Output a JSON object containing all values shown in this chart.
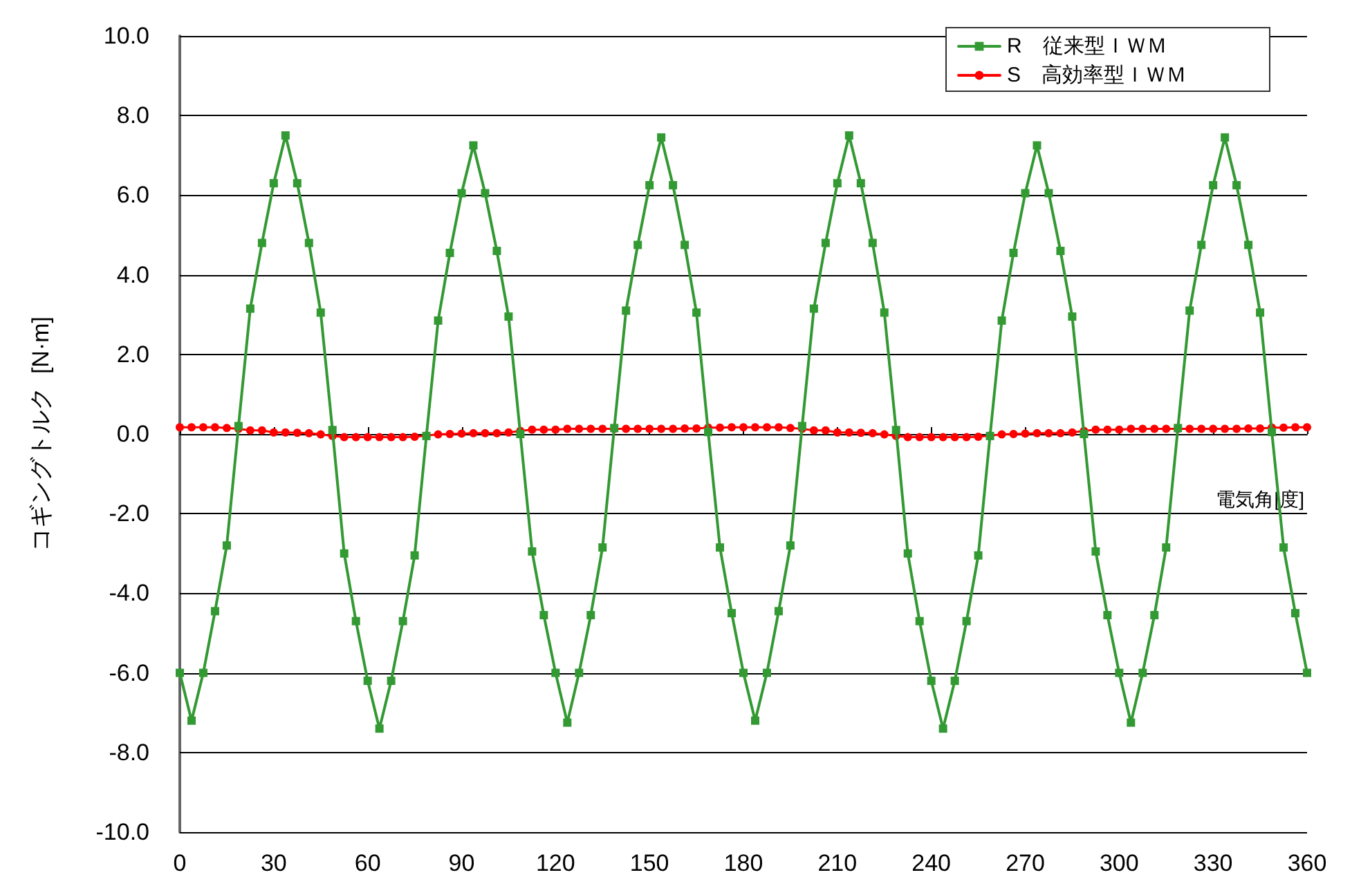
{
  "chart_data": {
    "type": "line",
    "xlabel": "電気角[度]",
    "ylabel": "コギングトルク  [N·m]",
    "x": [
      0,
      3.75,
      7.5,
      11.25,
      15,
      18.75,
      22.5,
      26.25,
      30,
      33.75,
      37.5,
      41.25,
      45,
      48.75,
      52.5,
      56.25,
      60,
      63.75,
      67.5,
      71.25,
      75,
      78.75,
      82.5,
      86.25,
      90,
      93.75,
      97.5,
      101.25,
      105,
      108.75,
      112.5,
      116.25,
      120,
      123.75,
      127.5,
      131.25,
      135,
      138.75,
      142.5,
      146.25,
      150,
      153.75,
      157.5,
      161.25,
      165,
      168.75,
      172.5,
      176.25,
      180,
      183.75,
      187.5,
      191.25,
      195,
      198.75,
      202.5,
      206.25,
      210,
      213.75,
      217.5,
      221.25,
      225,
      228.75,
      232.5,
      236.25,
      240,
      243.75,
      247.5,
      251.25,
      255,
      258.75,
      262.5,
      266.25,
      270,
      273.75,
      277.5,
      281.25,
      285,
      288.75,
      292.5,
      296.25,
      300,
      303.75,
      307.5,
      311.25,
      315,
      318.75,
      322.5,
      326.25,
      330,
      333.75,
      337.5,
      341.25,
      345,
      348.75,
      352.5,
      356.25,
      360
    ],
    "series": [
      {
        "name": "R　従来型ＩＷＭ",
        "color": "#339933",
        "marker": "square",
        "values": [
          -6.0,
          -7.2,
          -6.0,
          -4.45,
          -2.8,
          0.2,
          3.15,
          4.8,
          6.3,
          7.5,
          6.3,
          4.8,
          3.05,
          0.1,
          -3.0,
          -4.7,
          -6.2,
          -7.4,
          -6.2,
          -4.7,
          -3.05,
          -0.05,
          2.85,
          4.55,
          6.05,
          7.25,
          6.05,
          4.6,
          2.95,
          0.0,
          -2.95,
          -4.55,
          -6.0,
          -7.25,
          -6.0,
          -4.55,
          -2.85,
          0.15,
          3.1,
          4.75,
          6.25,
          7.45,
          6.25,
          4.75,
          3.05,
          0.05,
          -2.85,
          -4.5,
          -6.0,
          -7.2,
          -6.0,
          -4.45,
          -2.8,
          0.2,
          3.15,
          4.8,
          6.3,
          7.5,
          6.3,
          4.8,
          3.05,
          0.1,
          -3.0,
          -4.7,
          -6.2,
          -7.4,
          -6.2,
          -4.7,
          -3.05,
          -0.05,
          2.85,
          4.55,
          6.05,
          7.25,
          6.05,
          4.6,
          2.95,
          0.0,
          -2.95,
          -4.55,
          -6.0,
          -7.25,
          -6.0,
          -4.55,
          -2.85,
          0.15,
          3.1,
          4.75,
          6.25,
          7.45,
          6.25,
          4.75,
          3.05,
          0.05,
          -2.85,
          -4.5,
          -6.0
        ]
      },
      {
        "name": "S　高効率型ＩＷＭ",
        "color": "#ff0000",
        "marker": "circle",
        "values": [
          0.17,
          0.17,
          0.17,
          0.17,
          0.15,
          0.13,
          0.09,
          0.09,
          0.04,
          0.04,
          0.03,
          0.02,
          -0.01,
          -0.05,
          -0.08,
          -0.08,
          -0.08,
          -0.08,
          -0.08,
          -0.08,
          -0.07,
          -0.04,
          -0.01,
          0.0,
          0.01,
          0.02,
          0.02,
          0.02,
          0.04,
          0.08,
          0.11,
          0.11,
          0.11,
          0.13,
          0.13,
          0.13,
          0.13,
          0.13,
          0.13,
          0.13,
          0.13,
          0.13,
          0.13,
          0.14,
          0.14,
          0.16,
          0.16,
          0.17,
          0.17,
          0.17,
          0.17,
          0.17,
          0.15,
          0.13,
          0.09,
          0.09,
          0.04,
          0.04,
          0.03,
          0.02,
          -0.01,
          -0.05,
          -0.08,
          -0.08,
          -0.08,
          -0.08,
          -0.08,
          -0.08,
          -0.07,
          -0.04,
          -0.01,
          0.0,
          0.01,
          0.02,
          0.02,
          0.02,
          0.04,
          0.08,
          0.11,
          0.11,
          0.11,
          0.13,
          0.13,
          0.13,
          0.13,
          0.13,
          0.13,
          0.13,
          0.13,
          0.13,
          0.13,
          0.14,
          0.14,
          0.16,
          0.16,
          0.17,
          0.17
        ]
      }
    ],
    "xlim": [
      0,
      360
    ],
    "xticks": [
      0,
      30,
      60,
      90,
      120,
      150,
      180,
      210,
      240,
      270,
      300,
      330,
      360
    ],
    "ylim": [
      -10,
      10
    ],
    "yticks": [
      {
        "value": -10,
        "label": "-10.0"
      },
      {
        "value": -8,
        "label": "-8.0"
      },
      {
        "value": -6,
        "label": "-6.0"
      },
      {
        "value": -4,
        "label": "-4.0"
      },
      {
        "value": -2,
        "label": "-2.0"
      },
      {
        "value": 0,
        "label": "0.0"
      },
      {
        "value": 2,
        "label": "2.0"
      },
      {
        "value": 4,
        "label": "4.0"
      },
      {
        "value": 6,
        "label": "6.0"
      },
      {
        "value": 8,
        "label": "8.0"
      },
      {
        "value": 10,
        "label": "10.0"
      }
    ],
    "grid": "y",
    "legend": "top right",
    "line_style": "solid"
  }
}
